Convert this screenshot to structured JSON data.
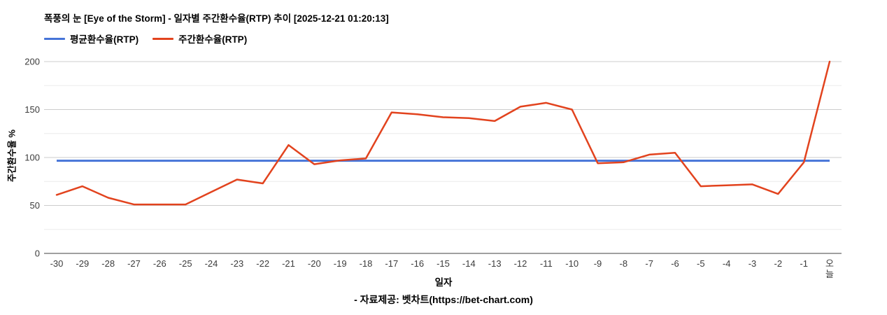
{
  "header": {
    "title": "폭풍의 눈 [Eye of the Storm] - 일자별 주간환수율(RTP) 추이 [2025-12-21 01:20:13]"
  },
  "legend": {
    "items": [
      {
        "label": "평균환수율(RTP)",
        "color": "#4674d8"
      },
      {
        "label": "주간환수율(RTP)",
        "color": "#e2431e"
      }
    ]
  },
  "chart_data": {
    "type": "line",
    "title": "폭풍의 눈 [Eye of the Storm] - 일자별 주간환수율(RTP) 추이 [2025-12-21 01:20:13]",
    "xlabel": "일자",
    "ylabel": "주간환수율 %",
    "x": [
      "-30",
      "-29",
      "-28",
      "-27",
      "-26",
      "-25",
      "-24",
      "-23",
      "-22",
      "-21",
      "-20",
      "-19",
      "-18",
      "-17",
      "-16",
      "-15",
      "-14",
      "-13",
      "-12",
      "-11",
      "-10",
      "-9",
      "-8",
      "-7",
      "-6",
      "-5",
      "-4",
      "-3",
      "-2",
      "-1",
      "오늘"
    ],
    "series": [
      {
        "name": "평균환수율(RTP)",
        "color": "#4674d8",
        "style": "constant",
        "value": 96.6
      },
      {
        "name": "주간환수율(RTP)",
        "color": "#e2431e",
        "style": "line",
        "values": [
          61,
          70,
          58,
          51,
          51,
          51,
          64,
          77,
          73,
          113,
          93,
          97,
          99,
          147,
          145,
          142,
          141,
          138,
          153,
          157,
          150,
          94,
          95,
          103,
          105,
          70,
          71,
          72,
          62,
          95,
          200
        ]
      }
    ],
    "ylim": [
      0,
      200
    ],
    "yticks": [
      0,
      50,
      100,
      150,
      200
    ],
    "minor_yticks": [
      25,
      75,
      125,
      175
    ],
    "grid": "horizontal",
    "legend_position": "top-left"
  },
  "footer": {
    "credit": "- 자료제공: 벳차트(https://bet-chart.com)"
  },
  "colors": {
    "background": "#ffffff",
    "major_gridline": "#cccccc",
    "minor_gridline": "#ececec",
    "axis_line": "#424242",
    "tick_label": "#3c3c3c"
  }
}
